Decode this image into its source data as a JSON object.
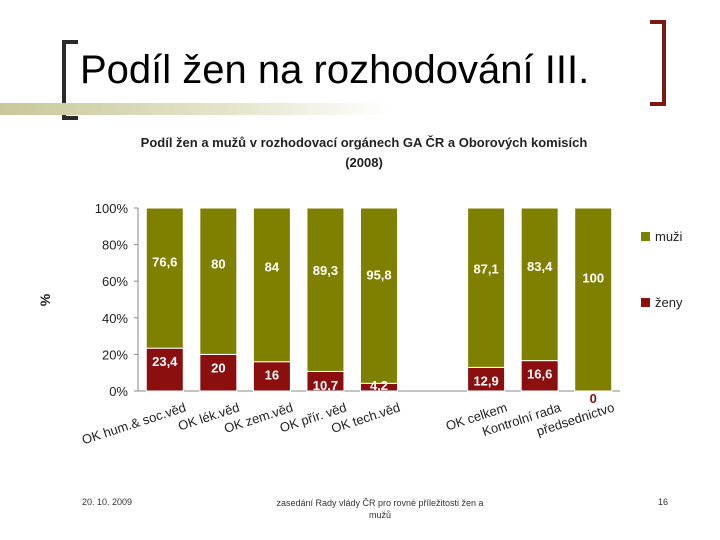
{
  "slide": {
    "title": "Podíl žen na rozhodování III.",
    "footer_date": "20. 10. 2009",
    "footer_center": "zasedání Rady vlády ČR pro rovné příležitosti žen a mužů",
    "page_number": "16"
  },
  "colors": {
    "muzi": "#808000",
    "zeny": "#8b0f0f",
    "accent": "#7a1a12"
  },
  "chart_data": {
    "type": "bar",
    "stacked": true,
    "percent": true,
    "title": "Podíl žen a mužů v rozhodovací orgánech GA ČR a Oborových komisích",
    "subtitle": "(2008)",
    "ylabel": "%",
    "ylim": [
      0,
      100
    ],
    "yticks": [
      "0%",
      "20%",
      "40%",
      "60%",
      "80%",
      "100%"
    ],
    "categories": [
      "OK hum.& soc.věd",
      "OK lék.věd",
      "OK zem.věd",
      "OK přír. věd",
      "OK tech.věd",
      "",
      "OK celkem",
      "Kontrolní rada",
      "předsednictvo"
    ],
    "series": [
      {
        "name": "ženy",
        "values": [
          23.4,
          20,
          16,
          10.7,
          4.2,
          null,
          12.9,
          16.6,
          0
        ],
        "labels": [
          "23,4",
          "20",
          "16",
          "10,7",
          "4,2",
          "",
          "12,9",
          "16,6",
          "0"
        ]
      },
      {
        "name": "muži",
        "values": [
          76.6,
          80,
          84,
          89.3,
          95.8,
          null,
          87.1,
          83.4,
          100
        ],
        "labels": [
          "76,6",
          "80",
          "84",
          "89,3",
          "95,8",
          "",
          "87,1",
          "83,4",
          "100"
        ]
      }
    ],
    "legend": [
      "muži",
      "ženy"
    ],
    "legend_position": "right",
    "grid": false
  }
}
